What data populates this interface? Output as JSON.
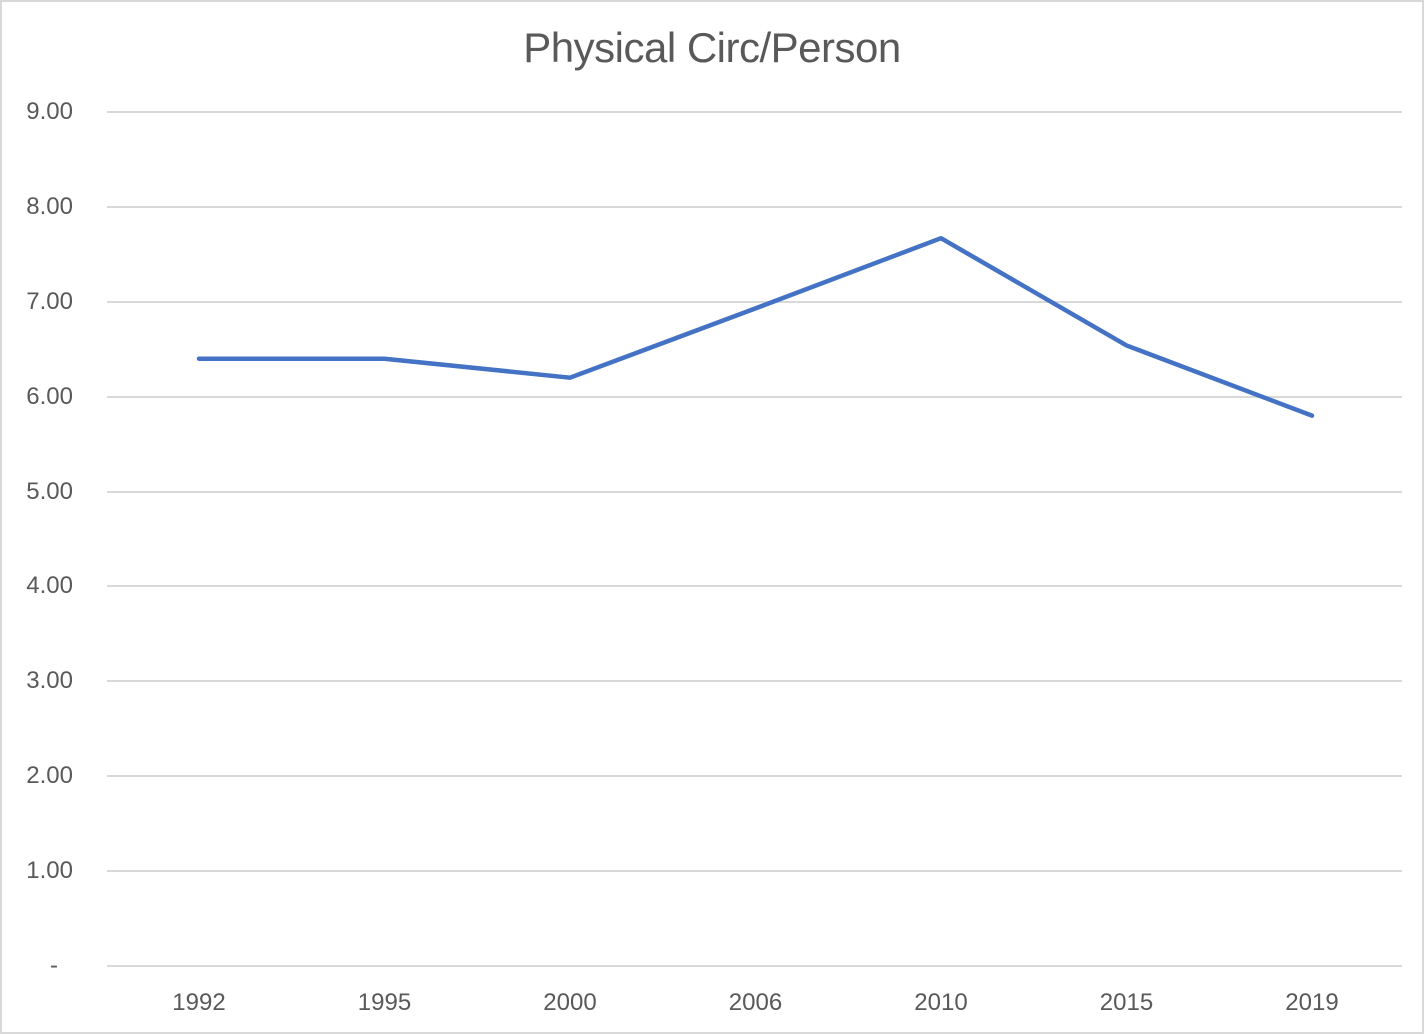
{
  "chart_data": {
    "type": "line",
    "title": "Physical Circ/Person",
    "categories": [
      "1992",
      "1995",
      "2000",
      "2006",
      "2010",
      "2015",
      "2019"
    ],
    "values": [
      6.4,
      6.4,
      6.2,
      6.93,
      7.67,
      6.54,
      5.8
    ],
    "y_ticks": [
      {
        "value": 9,
        "label": "9.00"
      },
      {
        "value": 8,
        "label": "8.00"
      },
      {
        "value": 7,
        "label": "7.00"
      },
      {
        "value": 6,
        "label": "6.00"
      },
      {
        "value": 5,
        "label": "5.00"
      },
      {
        "value": 4,
        "label": "4.00"
      },
      {
        "value": 3,
        "label": "3.00"
      },
      {
        "value": 2,
        "label": "2.00"
      },
      {
        "value": 1,
        "label": "1.00"
      },
      {
        "value": 0,
        "label": "-"
      }
    ],
    "ylim": [
      0,
      9
    ],
    "xlabel": "",
    "ylabel": "",
    "grid": true,
    "legend": "none",
    "colors": {
      "line": "#4472C4",
      "gridline": "#D9D9D9",
      "text": "#595959",
      "border": "#D9D9D9",
      "background": "#FFFFFF"
    }
  }
}
